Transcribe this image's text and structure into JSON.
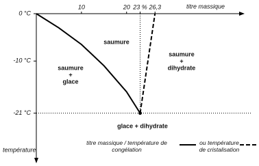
{
  "chart_data": {
    "type": "line",
    "x_label": "titre massique",
    "y_label": "température",
    "xlim": [
      0,
      46
    ],
    "ylim": [
      0,
      -31
    ],
    "xticks": [
      10,
      20,
      {
        "value": 23,
        "label": "23 %"
      },
      {
        "value": 26.3,
        "label": "26,3"
      }
    ],
    "yticks": [
      {
        "value": 0,
        "label": "0 °C"
      },
      {
        "value": -10,
        "label": "-10 °C"
      },
      {
        "value": -21,
        "label": "-21 °C"
      }
    ],
    "series": [
      {
        "name": "titre massique / température de congélation",
        "color": "#000",
        "style": "solid",
        "x": [
          0,
          5,
          10,
          15,
          20,
          23
        ],
        "values": [
          0,
          -3,
          -6.5,
          -11,
          -16.5,
          -21
        ]
      },
      {
        "name": "ou température de cristalisation",
        "color": "#000",
        "style": "dashed",
        "x": [
          23,
          26.3
        ],
        "values": [
          -21,
          0
        ]
      }
    ],
    "annotations": [
      "saumure",
      "saumure",
      "+",
      "glace",
      "saumure",
      "+",
      "dihydrate",
      "glace + dihydrate"
    ]
  }
}
